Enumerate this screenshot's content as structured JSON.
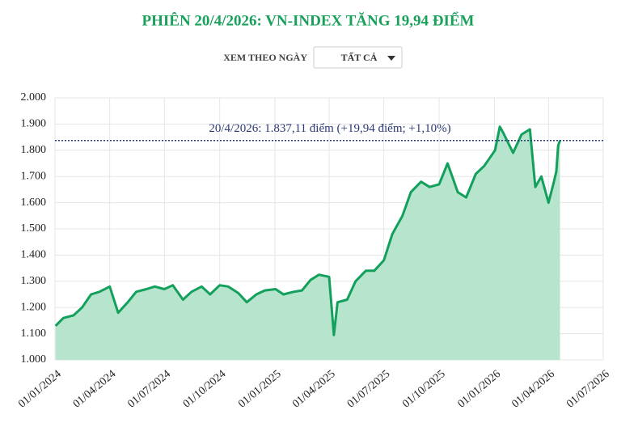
{
  "chart_data": {
    "type": "area",
    "title": "PHIÊN 20/4/2026: VN-INDEX TĂNG 19,94 ĐIỂM",
    "controls": {
      "label": "XEM THEO NGÀY",
      "dropdown": "TẤT CẢ"
    },
    "x": [
      "02/01/2024",
      "15/01/2024",
      "01/02/2024",
      "15/02/2024",
      "01/03/2024",
      "15/03/2024",
      "01/04/2024",
      "15/04/2024",
      "01/05/2024",
      "15/05/2024",
      "01/06/2024",
      "15/06/2024",
      "01/07/2024",
      "15/07/2024",
      "01/08/2024",
      "15/08/2024",
      "01/09/2024",
      "15/09/2024",
      "01/10/2024",
      "15/10/2024",
      "01/11/2024",
      "15/11/2024",
      "01/12/2024",
      "15/12/2024",
      "02/01/2025",
      "15/01/2025",
      "01/02/2025",
      "15/02/2025",
      "01/03/2025",
      "15/03/2025",
      "01/04/2025",
      "09/04/2025",
      "15/04/2025",
      "01/05/2025",
      "15/05/2025",
      "01/06/2025",
      "15/06/2025",
      "01/07/2025",
      "15/07/2025",
      "01/08/2025",
      "15/08/2025",
      "01/09/2025",
      "15/09/2025",
      "01/10/2025",
      "15/10/2025",
      "01/11/2025",
      "15/11/2025",
      "01/12/2025",
      "15/12/2025",
      "02/01/2026",
      "10/01/2026",
      "15/01/2026",
      "01/02/2026",
      "15/02/2026",
      "01/03/2026",
      "10/03/2026",
      "20/03/2026",
      "01/04/2026",
      "10/04/2026",
      "14/04/2026",
      "17/04/2026",
      "20/04/2026"
    ],
    "values": [
      1130,
      1160,
      1170,
      1200,
      1250,
      1260,
      1280,
      1180,
      1220,
      1260,
      1270,
      1280,
      1270,
      1285,
      1230,
      1260,
      1280,
      1250,
      1285,
      1280,
      1255,
      1220,
      1250,
      1265,
      1270,
      1250,
      1260,
      1265,
      1305,
      1325,
      1317,
      1095,
      1220,
      1230,
      1300,
      1340,
      1340,
      1380,
      1480,
      1550,
      1640,
      1680,
      1660,
      1670,
      1750,
      1640,
      1620,
      1710,
      1740,
      1800,
      1890,
      1870,
      1790,
      1860,
      1880,
      1660,
      1700,
      1600,
      1680,
      1720,
      1817,
      1837.11
    ],
    "color": "#12a05c",
    "area_color": "#b6e4cc",
    "xlim": [
      "01/01/2024",
      "01/07/2026"
    ],
    "xticks": [
      "01/01/2024",
      "01/04/2024",
      "01/07/2024",
      "01/10/2024",
      "01/01/2025",
      "01/04/2025",
      "01/07/2025",
      "01/10/2025",
      "01/01/2026",
      "01/04/2026",
      "01/07/2026"
    ],
    "ylim": [
      1000,
      2000
    ],
    "yticks": [
      {
        "value": 1000,
        "label": "1.000"
      },
      {
        "value": 1100,
        "label": "1.100"
      },
      {
        "value": 1200,
        "label": "1.200"
      },
      {
        "value": 1300,
        "label": "1.300"
      },
      {
        "value": 1400,
        "label": "1.400"
      },
      {
        "value": 1500,
        "label": "1.500"
      },
      {
        "value": 1600,
        "label": "1.600"
      },
      {
        "value": 1700,
        "label": "1.700"
      },
      {
        "value": 1800,
        "label": "1.800"
      },
      {
        "value": 1900,
        "label": "1.900"
      },
      {
        "value": 2000,
        "label": "2.000"
      }
    ],
    "grid": true,
    "reference_line": {
      "value": 1837.11,
      "label": "20/4/2026: 1.837,11 điểm (+19,94 điểm; +1,10%)",
      "color": "#2b3a78"
    }
  }
}
